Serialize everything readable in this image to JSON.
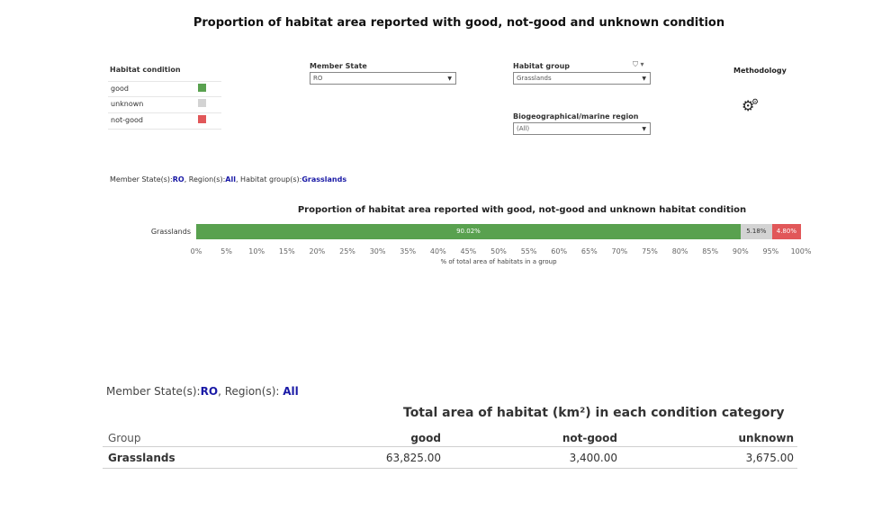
{
  "title": "Proportion of habitat area reported with good, not-good and unknown condition",
  "legend": {
    "title": "Habitat condition",
    "items": [
      {
        "label": "good",
        "color": "#59a14f"
      },
      {
        "label": "unknown",
        "color": "#d3d3d3"
      },
      {
        "label": "not-good",
        "color": "#e15759"
      }
    ]
  },
  "filters": {
    "member_state": {
      "label": "Member State",
      "value": "RO"
    },
    "habitat_group": {
      "label": "Habitat group",
      "value": "Grasslands"
    },
    "region": {
      "label": "Biogeographical/marine region",
      "value": "(All)"
    }
  },
  "methodology": "Methodology",
  "info_line": {
    "ms_label": "Member State(s):",
    "ms_value": "RO",
    "region_label": ", Region(s):",
    "region_value": "All",
    "group_label": ", Habitat group(s):",
    "group_value": "Grasslands"
  },
  "chart_data": {
    "type": "bar",
    "orientation": "horizontal-stacked",
    "title": "Proportion of habitat area reported with good, not-good and unknown habitat condition",
    "xlabel": "% of total area of habitats in a group",
    "categories": [
      "Grasslands"
    ],
    "series": [
      {
        "name": "good",
        "values": [
          90.02
        ],
        "label": "90.02%",
        "color": "#59a14f"
      },
      {
        "name": "unknown",
        "values": [
          5.18
        ],
        "label": "5.18%",
        "color": "#d3d3d3"
      },
      {
        "name": "not-good",
        "values": [
          4.8
        ],
        "label": "4.80%",
        "color": "#e15759"
      }
    ],
    "xlim": [
      0,
      100
    ],
    "xticks": [
      "0%",
      "5%",
      "10%",
      "15%",
      "20%",
      "25%",
      "30%",
      "35%",
      "40%",
      "45%",
      "50%",
      "55%",
      "60%",
      "65%",
      "70%",
      "75%",
      "80%",
      "85%",
      "90%",
      "95%",
      "100%"
    ]
  },
  "info_line2": {
    "ms_label": "Member State(s):",
    "ms_value": "RO",
    "region_label": ", Region(s): ",
    "region_value": "All"
  },
  "table": {
    "title": "Total area of habitat (km²) in each condition category",
    "headers": [
      "Group",
      "good",
      "not-good",
      "unknown"
    ],
    "rows": [
      [
        "Grasslands",
        "63,825.00",
        "3,400.00",
        "3,675.00"
      ]
    ]
  }
}
